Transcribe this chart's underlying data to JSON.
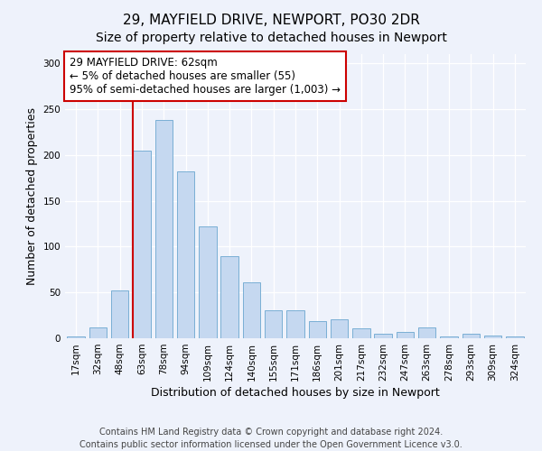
{
  "title": "29, MAYFIELD DRIVE, NEWPORT, PO30 2DR",
  "subtitle": "Size of property relative to detached houses in Newport",
  "xlabel": "Distribution of detached houses by size in Newport",
  "ylabel": "Number of detached properties",
  "categories": [
    "17sqm",
    "32sqm",
    "48sqm",
    "63sqm",
    "78sqm",
    "94sqm",
    "109sqm",
    "124sqm",
    "140sqm",
    "155sqm",
    "171sqm",
    "186sqm",
    "201sqm",
    "217sqm",
    "232sqm",
    "247sqm",
    "263sqm",
    "278sqm",
    "293sqm",
    "309sqm",
    "324sqm"
  ],
  "values": [
    2,
    12,
    52,
    205,
    238,
    182,
    122,
    90,
    61,
    31,
    31,
    19,
    21,
    11,
    5,
    7,
    12,
    2,
    5,
    3,
    2
  ],
  "bar_color": "#c5d8f0",
  "bar_edgecolor": "#7aafd4",
  "vline_color": "#cc0000",
  "annotation_text": "29 MAYFIELD DRIVE: 62sqm\n← 5% of detached houses are smaller (55)\n95% of semi-detached houses are larger (1,003) →",
  "annotation_box_facecolor": "#ffffff",
  "annotation_box_edgecolor": "#cc0000",
  "ylim": [
    0,
    310
  ],
  "yticks": [
    0,
    50,
    100,
    150,
    200,
    250,
    300
  ],
  "footer_text": "Contains HM Land Registry data © Crown copyright and database right 2024.\nContains public sector information licensed under the Open Government Licence v3.0.",
  "title_fontsize": 11,
  "subtitle_fontsize": 10,
  "xlabel_fontsize": 9,
  "ylabel_fontsize": 9,
  "tick_fontsize": 7.5,
  "annotation_fontsize": 8.5,
  "footer_fontsize": 7,
  "background_color": "#eef2fb",
  "plot_background_color": "#eef2fb"
}
